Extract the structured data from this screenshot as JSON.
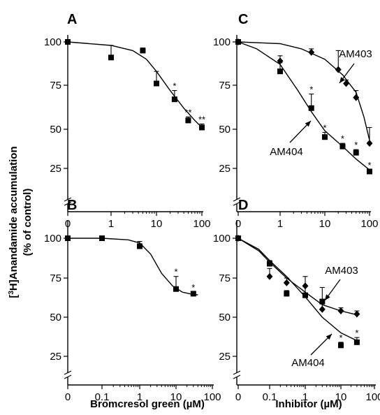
{
  "figure": {
    "y_label_main": "Anandamide accumulation",
    "y_label_prefix_open": "[",
    "y_label_sup": "3",
    "y_label_prefix_close": "H]",
    "y_label_sub": "(% of control)",
    "x_label_left": "Bromcresol green (µM)",
    "x_label_right": "Inhibitor (µM)"
  },
  "chart_data": [
    {
      "panel": "A",
      "type": "scatter",
      "xlabel": "Bromcresol green (µM)",
      "ylabel": "[3H]Anandamide accumulation (% of control)",
      "x_scale": "log",
      "x_ticks": [
        "0",
        "1",
        "10",
        "100"
      ],
      "y_ticks": [
        "25",
        "50",
        "75",
        "100"
      ],
      "ylim": [
        20,
        105
      ],
      "axis_break": true,
      "series": [
        {
          "marker": "square",
          "points": [
            {
              "x": 0,
              "y": 100,
              "err": 0,
              "star": ""
            },
            {
              "x": 1,
              "y": 91,
              "err": 7,
              "star": ""
            },
            {
              "x": 5,
              "y": 95,
              "err": 1.5,
              "star": ""
            },
            {
              "x": 10,
              "y": 76,
              "err": 7,
              "star": ""
            },
            {
              "x": 25,
              "y": 67,
              "err": 5,
              "star": "*"
            },
            {
              "x": 50,
              "y": 55,
              "err": 2,
              "star": "**"
            },
            {
              "x": 100,
              "y": 51,
              "err": 2,
              "star": "**"
            }
          ],
          "fit": [
            [
              0,
              100
            ],
            [
              1,
              98
            ],
            [
              3,
              95
            ],
            [
              6,
              90
            ],
            [
              10,
              83
            ],
            [
              20,
              72
            ],
            [
              40,
              62
            ],
            [
              70,
              55
            ],
            [
              100,
              51
            ]
          ]
        }
      ]
    },
    {
      "panel": "B",
      "type": "scatter",
      "xlabel": "Bromcresol green (µM)",
      "ylabel": "[3H]Anandamide accumulation (% of control)",
      "x_scale": "log",
      "x_ticks": [
        "0",
        "0.1",
        "1",
        "10",
        "100"
      ],
      "y_ticks": [
        "25",
        "50",
        "75",
        "100"
      ],
      "ylim": [
        20,
        105
      ],
      "axis_break": true,
      "series": [
        {
          "marker": "square",
          "points": [
            {
              "x": 0,
              "y": 100,
              "err": 0,
              "star": ""
            },
            {
              "x": 0.1,
              "y": 100,
              "err": 0,
              "star": ""
            },
            {
              "x": 1,
              "y": 95,
              "err": 3,
              "star": ""
            },
            {
              "x": 10,
              "y": 68,
              "err": 8,
              "star": "*"
            },
            {
              "x": 30,
              "y": 65,
              "err": 1,
              "star": "*"
            }
          ],
          "fit": [
            [
              0,
              100
            ],
            [
              0.1,
              100
            ],
            [
              0.5,
              99
            ],
            [
              1,
              97
            ],
            [
              2,
              90
            ],
            [
              4,
              78
            ],
            [
              8,
              70
            ],
            [
              15,
              66
            ],
            [
              30,
              64.5
            ],
            [
              40,
              64.3
            ]
          ]
        }
      ]
    },
    {
      "panel": "C",
      "type": "scatter",
      "xlabel": "Inhibitor (µM)",
      "ylabel": "[3H]Anandamide accumulation (% of control)",
      "x_scale": "log",
      "x_ticks": [
        "0",
        "1",
        "10",
        "100"
      ],
      "y_ticks": [
        "25",
        "50",
        "75",
        "100"
      ],
      "ylim": [
        20,
        105
      ],
      "axis_break": true,
      "series": [
        {
          "name": "AM403",
          "marker": "diamond",
          "points": [
            {
              "x": 0,
              "y": 100,
              "err": 0,
              "star": ""
            },
            {
              "x": 1,
              "y": 89,
              "err": 3,
              "star": ""
            },
            {
              "x": 5,
              "y": 94,
              "err": 2,
              "star": ""
            },
            {
              "x": 20,
              "y": 84,
              "err": 11,
              "star": ""
            },
            {
              "x": 30,
              "y": 76,
              "err": 2,
              "star": ""
            },
            {
              "x": 50,
              "y": 68,
              "err": 4,
              "star": ""
            },
            {
              "x": 100,
              "y": 41,
              "err": 10,
              "star": ""
            }
          ],
          "fit": [
            [
              0,
              100
            ],
            [
              1,
              99
            ],
            [
              3,
              96
            ],
            [
              10,
              90
            ],
            [
              25,
              81
            ],
            [
              50,
              71
            ],
            [
              75,
              57
            ],
            [
              100,
              43
            ]
          ]
        },
        {
          "name": "AM404",
          "marker": "square",
          "points": [
            {
              "x": 0,
              "y": 100,
              "err": 0,
              "star": ""
            },
            {
              "x": 1,
              "y": 83,
              "err": 5,
              "star": ""
            },
            {
              "x": 5,
              "y": 62,
              "err": 8,
              "star": "*"
            },
            {
              "x": 10,
              "y": 45,
              "err": 3,
              "star": "*"
            },
            {
              "x": 25,
              "y": 39,
              "err": 2,
              "star": "*"
            },
            {
              "x": 50,
              "y": 35,
              "err": 2,
              "star": "*"
            },
            {
              "x": 100,
              "y": 23,
              "err": 1,
              "star": "*"
            }
          ],
          "fit": [
            [
              0,
              100
            ],
            [
              0.3,
              96
            ],
            [
              1,
              87
            ],
            [
              2.5,
              72
            ],
            [
              5,
              60
            ],
            [
              10,
              49
            ],
            [
              25,
              39
            ],
            [
              50,
              31
            ],
            [
              100,
              24
            ]
          ]
        }
      ],
      "annotations": [
        "AM403",
        "AM404"
      ]
    },
    {
      "panel": "D",
      "type": "scatter",
      "xlabel": "Inhibitor (µM)",
      "ylabel": "[3H]Anandamide accumulation (% of control)",
      "x_scale": "log",
      "x_ticks": [
        "0",
        "0.1",
        "1",
        "10",
        "100"
      ],
      "y_ticks": [
        "25",
        "50",
        "75",
        "100"
      ],
      "ylim": [
        20,
        105
      ],
      "axis_break": true,
      "series": [
        {
          "name": "AM403",
          "marker": "diamond",
          "points": [
            {
              "x": 0,
              "y": 100,
              "err": 0,
              "star": ""
            },
            {
              "x": 0.1,
              "y": 76,
              "err": 5,
              "star": ""
            },
            {
              "x": 0.3,
              "y": 72,
              "err": 3,
              "star": ""
            },
            {
              "x": 1,
              "y": 70,
              "err": 6,
              "star": ""
            },
            {
              "x": 3,
              "y": 55,
              "err": 5,
              "star": ""
            },
            {
              "x": 10,
              "y": 54,
              "err": 2,
              "star": ""
            },
            {
              "x": 30,
              "y": 52,
              "err": 2,
              "star": ""
            }
          ],
          "fit": [
            [
              0,
              100
            ],
            [
              0.05,
              92
            ],
            [
              0.1,
              85
            ],
            [
              0.3,
              75
            ],
            [
              1,
              66
            ],
            [
              3,
              58
            ],
            [
              10,
              54
            ],
            [
              30,
              51.5
            ]
          ]
        },
        {
          "name": "AM404",
          "marker": "square",
          "points": [
            {
              "x": 0,
              "y": 100,
              "err": 0,
              "star": ""
            },
            {
              "x": 0.1,
              "y": 84,
              "err": 2,
              "star": ""
            },
            {
              "x": 0.3,
              "y": 65,
              "err": 2,
              "star": ""
            },
            {
              "x": 1,
              "y": 64,
              "err": 6,
              "star": ""
            },
            {
              "x": 3,
              "y": 60,
              "err": 9,
              "star": ""
            },
            {
              "x": 10,
              "y": 32,
              "err": 2,
              "star": "*"
            },
            {
              "x": 30,
              "y": 34,
              "err": 3,
              "star": "*"
            }
          ],
          "fit": [
            [
              0,
              100
            ],
            [
              0.05,
              93
            ],
            [
              0.1,
              86
            ],
            [
              0.3,
              76
            ],
            [
              1,
              63
            ],
            [
              3,
              50
            ],
            [
              10,
              40
            ],
            [
              30,
              35
            ]
          ]
        }
      ],
      "annotations": [
        "AM403",
        "AM404"
      ]
    }
  ]
}
